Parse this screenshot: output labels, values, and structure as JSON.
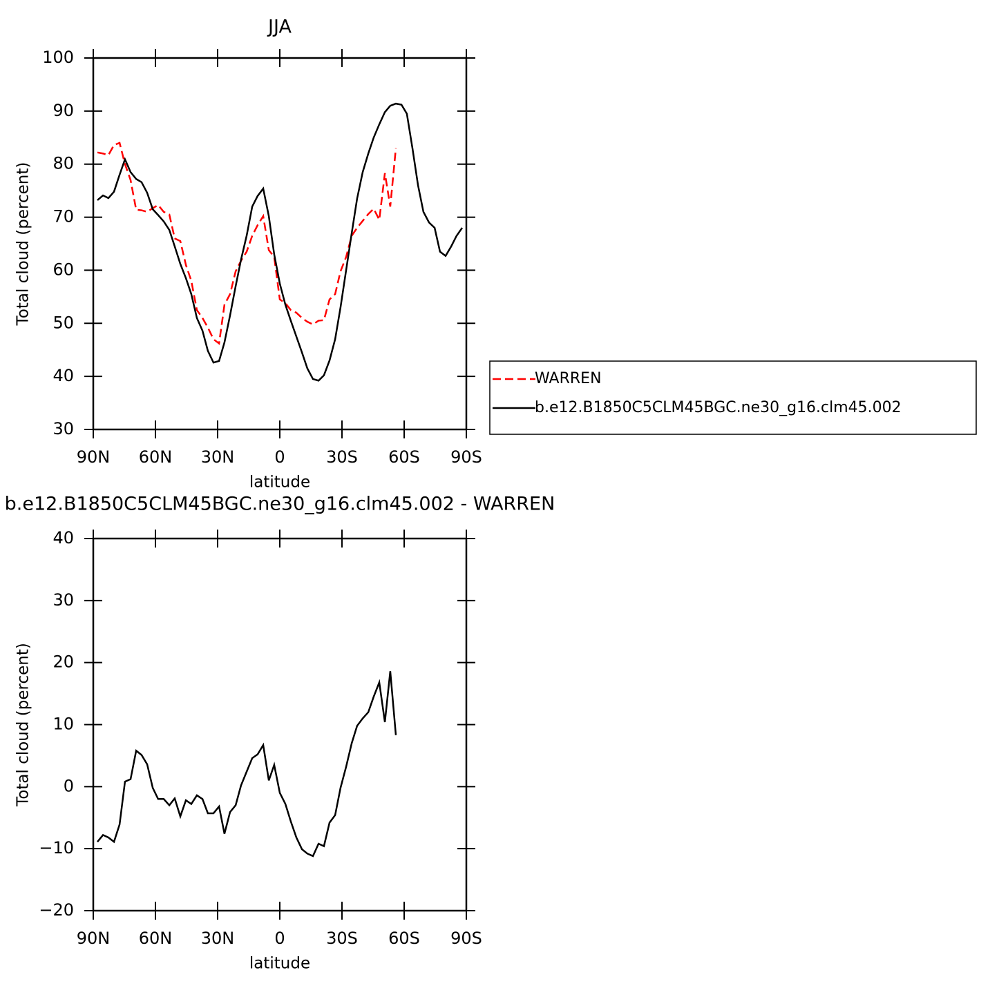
{
  "chart_data": [
    {
      "type": "line",
      "title": "JJA",
      "xlabel": "latitude",
      "ylabel": "Total cloud (percent)",
      "xlim": [
        90,
        -90
      ],
      "xticks": [
        {
          "value": 90,
          "label": "90N"
        },
        {
          "value": 60,
          "label": "60N"
        },
        {
          "value": 30,
          "label": "30N"
        },
        0,
        {
          "value": -30,
          "label": "30S"
        },
        {
          "value": -60,
          "label": "60S"
        },
        {
          "value": -90,
          "label": "90S"
        }
      ],
      "ylim": [
        30,
        100
      ],
      "yticks": [
        30,
        40,
        50,
        60,
        70,
        80,
        90,
        100
      ],
      "legend": "right",
      "series": [
        {
          "name": "WARREN",
          "color": "#ff0000",
          "dash": "dashed",
          "x": [
            88,
            85.3,
            82.7,
            80,
            77.3,
            74.7,
            72,
            69.3,
            66.7,
            64,
            61.3,
            58.7,
            56,
            53.3,
            50.7,
            48,
            45.3,
            42.7,
            40,
            37.3,
            34.7,
            32,
            29.3,
            26.7,
            24,
            21.3,
            18.7,
            16,
            13.3,
            10.7,
            8,
            5.3,
            2.7,
            0,
            -2.7,
            -5.3,
            -8,
            -10.7,
            -13.3,
            -16,
            -18.7,
            -21.3,
            -24,
            -26.7,
            -29.3,
            -32,
            -34.7,
            -37.3,
            -40,
            -42.7,
            -45.3,
            -48,
            -50.7,
            -53.3,
            -56
          ],
          "values": [
            82.2,
            82,
            81.7,
            83.6,
            84,
            80,
            77,
            71.4,
            71.3,
            71,
            71.7,
            72.3,
            71,
            70.5,
            66,
            65.5,
            61,
            58,
            52.5,
            51,
            49.2,
            47,
            46.2,
            53.5,
            55.5,
            59.8,
            61.8,
            63.5,
            66.5,
            68.5,
            70.2,
            63.8,
            62.5,
            54.5,
            53.8,
            52.5,
            52,
            51,
            50.3,
            49.8,
            50.5,
            50.6,
            54.5,
            55.5,
            59.8,
            62.5,
            66.5,
            68,
            69.3,
            70.6,
            71.6,
            69.5,
            78.3,
            72,
            83
          ]
        },
        {
          "name": "b.e12.B1850C5CLM45BGC.ne30_g16.clm45.002",
          "color": "#000000",
          "dash": "solid",
          "x": [
            88,
            85.3,
            82.7,
            80,
            77.3,
            74.7,
            72,
            69.3,
            66.7,
            64,
            61.3,
            58.7,
            56,
            53.3,
            50.7,
            48,
            45.3,
            42.7,
            40,
            37.3,
            34.7,
            32,
            29.3,
            26.7,
            24,
            21.3,
            18.7,
            16,
            13.3,
            10.7,
            8,
            5.3,
            2.7,
            0,
            -2.7,
            -5.3,
            -8,
            -10.7,
            -13.3,
            -16,
            -18.7,
            -21.3,
            -24,
            -26.7,
            -29.3,
            -32,
            -34.7,
            -37.3,
            -40,
            -42.7,
            -45.3,
            -48,
            -50.7,
            -53.3,
            -56,
            -58.7,
            -61.3,
            -64,
            -66.7,
            -69.3,
            -72,
            -74.7,
            -77.3,
            -80,
            -82.7,
            -85.3,
            -88
          ],
          "values": [
            73.2,
            74.1,
            73.6,
            74.8,
            78,
            80.9,
            78.5,
            77.2,
            76.6,
            74.6,
            71.5,
            70.4,
            69.2,
            67.6,
            64.5,
            61.2,
            58.5,
            55.5,
            51,
            48.6,
            44.8,
            42.6,
            42.9,
            46.4,
            51.5,
            57,
            62,
            66.5,
            72,
            74,
            75.4,
            70.2,
            63,
            57.5,
            53.5,
            50.5,
            47.5,
            44.5,
            41.5,
            39.5,
            39.2,
            40.2,
            43,
            47,
            53,
            60,
            67,
            73.5,
            78.5,
            82,
            85,
            87.5,
            89.8,
            91,
            91.4,
            91.2,
            89.5,
            83,
            76,
            71,
            69,
            68,
            63.5,
            62.7,
            64.5,
            66.5,
            68
          ]
        }
      ]
    },
    {
      "type": "line",
      "title": "b.e12.B1850C5CLM45BGC.ne30_g16.clm45.002 - WARREN",
      "xlabel": "latitude",
      "ylabel": "Total cloud (percent)",
      "xlim": [
        90,
        -90
      ],
      "xticks": [
        {
          "value": 90,
          "label": "90N"
        },
        {
          "value": 60,
          "label": "60N"
        },
        {
          "value": 30,
          "label": "30N"
        },
        0,
        {
          "value": -30,
          "label": "30S"
        },
        {
          "value": -60,
          "label": "60S"
        },
        {
          "value": -90,
          "label": "90S"
        }
      ],
      "ylim": [
        -20,
        40
      ],
      "yticks": [
        {
          "value": -20,
          "label": "−20"
        },
        {
          "value": -10,
          "label": "−10"
        },
        0,
        10,
        20,
        30,
        40
      ],
      "series": [
        {
          "color": "#000000",
          "dash": "solid",
          "x": [
            88,
            85.3,
            82.7,
            80,
            77.3,
            74.7,
            72,
            69.3,
            66.7,
            64,
            61.3,
            58.7,
            56,
            53.3,
            50.7,
            48,
            45.3,
            42.7,
            40,
            37.3,
            34.7,
            32,
            29.3,
            26.7,
            24,
            21.3,
            18.7,
            16,
            13.3,
            10.7,
            8,
            5.3,
            2.7,
            0,
            -2.7,
            -5.3,
            -8,
            -10.7,
            -13.3,
            -16,
            -18.7,
            -21.3,
            -24,
            -26.7,
            -29.3,
            -32,
            -34.7,
            -37.3,
            -40,
            -42.7,
            -45.3,
            -48,
            -50.7,
            -53.3,
            -56
          ],
          "values": [
            -8.9,
            -7.8,
            -8.2,
            -8.9,
            -6.1,
            0.8,
            1.2,
            5.8,
            5.1,
            3.6,
            -0.2,
            -2,
            -2,
            -3,
            -1.9,
            -4.8,
            -2.2,
            -2.8,
            -1.4,
            -2,
            -4.3,
            -4.3,
            -3.2,
            -7.6,
            -4.1,
            -3,
            0.2,
            2.4,
            4.6,
            5.2,
            6.7,
            1,
            3.5,
            -1,
            -2.8,
            -5.6,
            -8.2,
            -10.1,
            -10.8,
            -11.2,
            -9.2,
            -9.6,
            -5.8,
            -4.6,
            -0.2,
            3.2,
            7,
            9.8,
            11,
            12,
            14.5,
            16.8,
            10.4,
            18.6,
            8.3
          ]
        }
      ]
    }
  ]
}
